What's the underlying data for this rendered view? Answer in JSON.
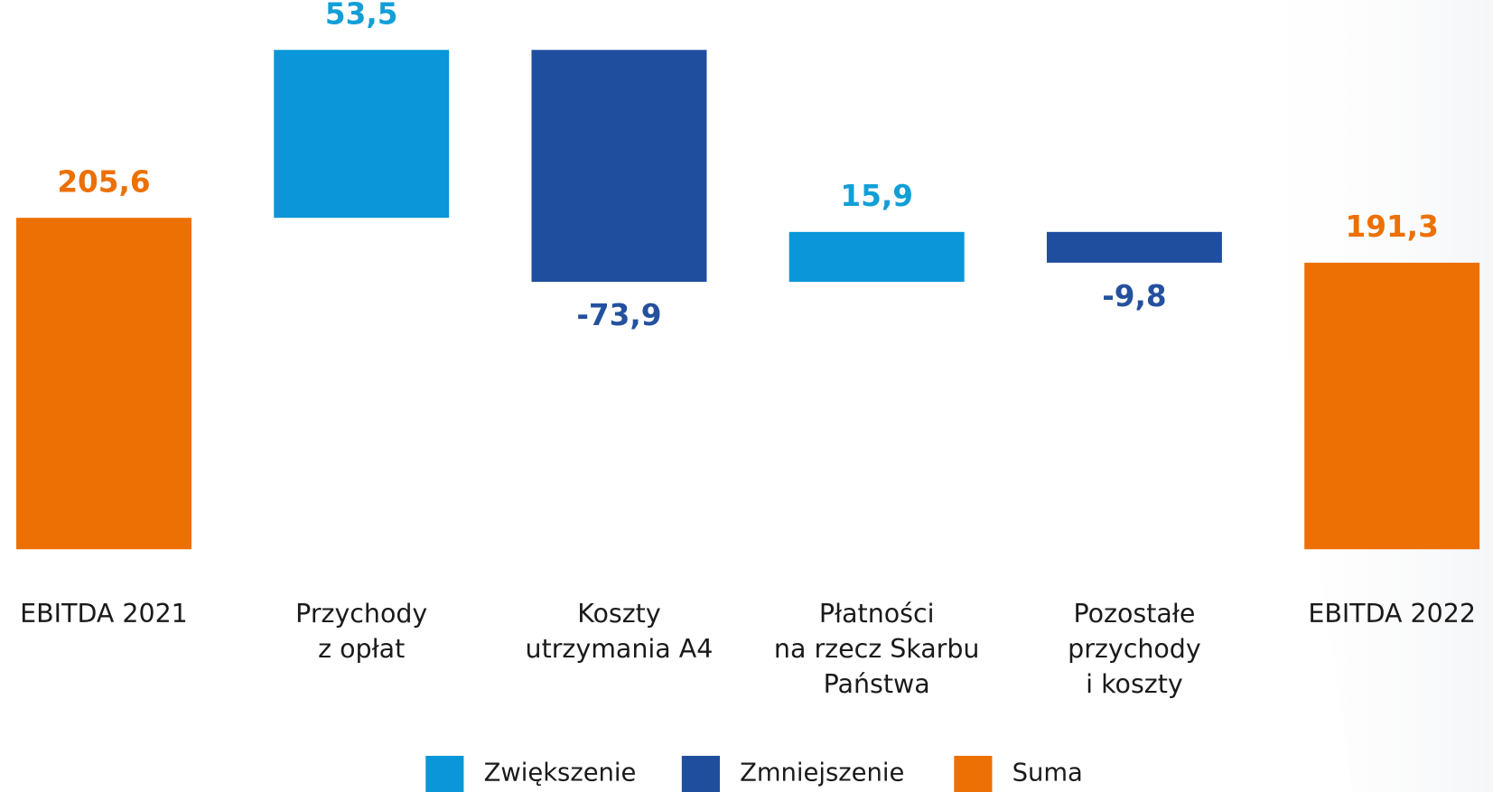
{
  "chart_data": {
    "type": "waterfall",
    "categories": [
      [
        "EBITDA 2021"
      ],
      [
        "Przychody",
        "z opłat"
      ],
      [
        "Koszty",
        "utrzymania A4"
      ],
      [
        "Płatności",
        "na rzecz Skarbu",
        "Państwa"
      ],
      [
        "Pozostałe",
        "przychody",
        "i koszty"
      ],
      [
        "EBITDA 2022"
      ]
    ],
    "series": [
      {
        "name": "Zwiększenie",
        "color": "#0a96d8",
        "label_color": "#129fd6",
        "values": [
          null,
          53.5,
          null,
          15.9,
          null,
          null
        ],
        "value_labels": [
          null,
          "53,5",
          null,
          "15,9",
          null,
          null
        ]
      },
      {
        "name": "Zmniejszenie",
        "color": "#1f4e9f",
        "label_color": "#24519e",
        "values": [
          null,
          null,
          -73.9,
          null,
          -9.8,
          null
        ],
        "value_labels": [
          null,
          null,
          "-73,9",
          null,
          "-9,8",
          null
        ]
      },
      {
        "name": "Suma",
        "color": "#ec7003",
        "label_color": "#ec7003",
        "values": [
          205.6,
          null,
          null,
          null,
          null,
          191.3
        ],
        "value_labels": [
          "205,6",
          null,
          null,
          null,
          null,
          "191,3"
        ]
      }
    ],
    "ylim": [
      100,
      275
    ]
  }
}
